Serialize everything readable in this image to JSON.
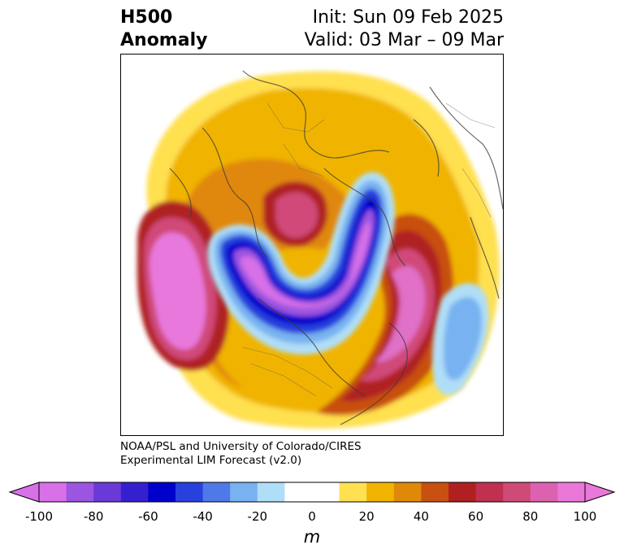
{
  "title": {
    "left_line1": "H500",
    "left_line2": "Anomaly",
    "right_line1": "Init: Sun 09 Feb 2025",
    "right_line2": "Valid: 03 Mar – 09 Mar"
  },
  "credit": {
    "line1": "NOAA/PSL and University of Colorado/CIRES",
    "line2": "Experimental LIM Forecast (v2.0)"
  },
  "colorbar": {
    "unit": "m",
    "tick_labels": [
      "-100",
      "-80",
      "-60",
      "-40",
      "-20",
      "0",
      "20",
      "40",
      "60",
      "80",
      "100"
    ],
    "colors": [
      "#d870e8",
      "#9b55e0",
      "#6a3ad8",
      "#3520d0",
      "#0000cc",
      "#2840dc",
      "#4f78e8",
      "#78b2f0",
      "#b0def8",
      "#ffffff",
      "#ffffff",
      "#ffe050",
      "#f0b400",
      "#e08808",
      "#c85010",
      "#b02020",
      "#c03050",
      "#d04a78",
      "#dc62b0",
      "#ea78d8"
    ],
    "extend_low": "#d870e8",
    "extend_high": "#ea78d8"
  }
}
